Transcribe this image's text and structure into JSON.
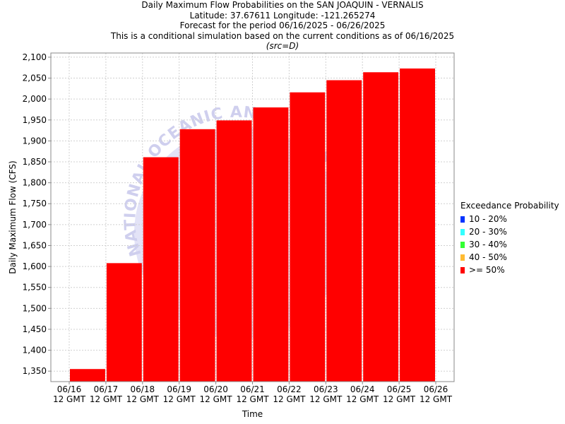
{
  "title_lines": [
    "Daily Maximum Flow Probabilities on the SAN JOAQUIN - VERNALIS",
    "Latitude: 37.67611 Longitude: -121.265274",
    "Forecast for the period 06/16/2025 - 06/26/2025",
    "This is a conditional simulation based on the current conditions as of 06/16/2025"
  ],
  "source_note": "(src=D)",
  "legend": {
    "title": "Exceedance Probability",
    "items": [
      {
        "label": "10 - 20%",
        "color": "#0033ff"
      },
      {
        "label": "20 - 30%",
        "color": "#33ffff"
      },
      {
        "label": "30 - 40%",
        "color": "#33ff33"
      },
      {
        "label": "40 - 50%",
        "color": "#ffbb33"
      },
      {
        "label": ">= 50%",
        "color": "#ff0000"
      }
    ]
  },
  "chart_data": {
    "type": "bar",
    "xlabel": "Time",
    "ylabel": "Daily Maximum Flow (CFS)",
    "ylim": [
      1325,
      2110
    ],
    "yticks": [
      1350,
      1400,
      1450,
      1500,
      1550,
      1600,
      1650,
      1700,
      1750,
      1800,
      1850,
      1900,
      1950,
      2000,
      2050,
      2100
    ],
    "ytick_labels": [
      "1,350",
      "1,400",
      "1,450",
      "1,500",
      "1,550",
      "1,600",
      "1,650",
      "1,700",
      "1,750",
      "1,800",
      "1,850",
      "1,900",
      "1,950",
      "2,000",
      "2,050",
      "2,100"
    ],
    "xtick_labels": [
      [
        "06/16",
        "12 GMT"
      ],
      [
        "06/17",
        "12 GMT"
      ],
      [
        "06/18",
        "12 GMT"
      ],
      [
        "06/19",
        "12 GMT"
      ],
      [
        "06/20",
        "12 GMT"
      ],
      [
        "06/21",
        "12 GMT"
      ],
      [
        "06/22",
        "12 GMT"
      ],
      [
        "06/23",
        "12 GMT"
      ],
      [
        "06/24",
        "12 GMT"
      ],
      [
        "06/25",
        "12 GMT"
      ],
      [
        "06/26",
        "12 GMT"
      ]
    ],
    "series": [
      {
        "color": "#ff0000",
        "values": [
          1355,
          1608,
          1861,
          1928,
          1949,
          1980,
          2016,
          2045,
          2064,
          2073
        ]
      }
    ],
    "grid": true,
    "legend_position": "right",
    "watermark_text": "NATIONAL OCEANIC AND ATMOSPHERIC"
  }
}
